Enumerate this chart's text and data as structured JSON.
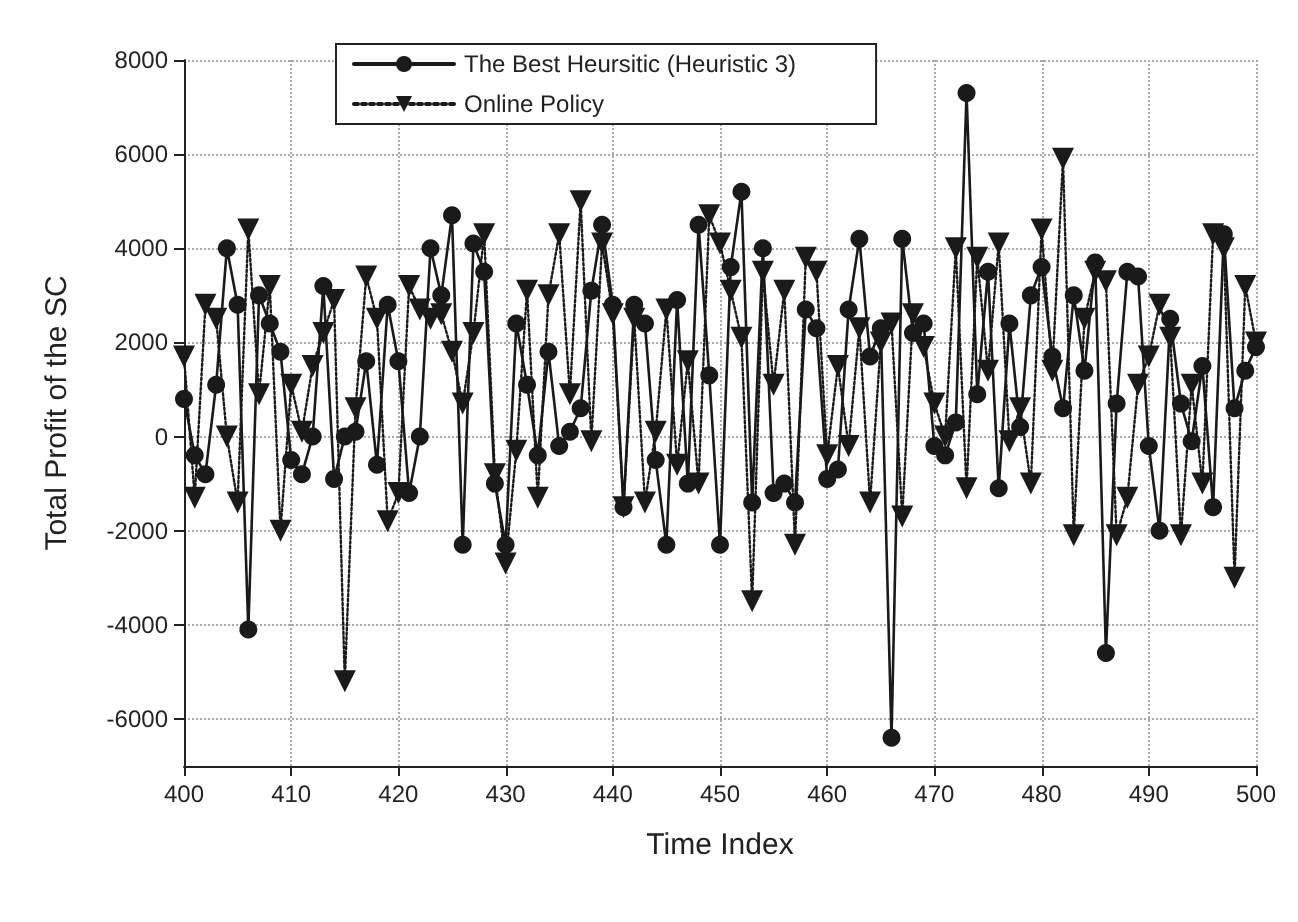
{
  "chart_data": {
    "type": "line",
    "xlabel": "Time Index",
    "ylabel": "Total Profit of the SC",
    "x": [
      400,
      401,
      402,
      403,
      404,
      405,
      406,
      407,
      408,
      409,
      410,
      411,
      412,
      413,
      414,
      415,
      416,
      417,
      418,
      419,
      420,
      421,
      422,
      423,
      424,
      425,
      426,
      427,
      428,
      429,
      430,
      431,
      432,
      433,
      434,
      435,
      436,
      437,
      438,
      439,
      440,
      441,
      442,
      443,
      444,
      445,
      446,
      447,
      448,
      449,
      450,
      451,
      452,
      453,
      454,
      455,
      456,
      457,
      458,
      459,
      460,
      461,
      462,
      463,
      464,
      465,
      466,
      467,
      468,
      469,
      470,
      471,
      472,
      473,
      474,
      475,
      476,
      477,
      478,
      479,
      480,
      481,
      482,
      483,
      484,
      485,
      486,
      487,
      488,
      489,
      490,
      491,
      492,
      493,
      494,
      495,
      496,
      497,
      498,
      499,
      500
    ],
    "series": [
      {
        "name": "The Best Heursitic (Heuristic 3)",
        "color": "#1a1a1a",
        "marker": "circle",
        "line_style": "solid",
        "values": [
          800,
          -400,
          -800,
          1100,
          4000,
          2800,
          -4100,
          3000,
          2400,
          1800,
          -500,
          -800,
          0,
          3200,
          -900,
          0,
          100,
          1600,
          -600,
          2800,
          1600,
          -1200,
          0,
          4000,
          3000,
          4700,
          -2300,
          4100,
          3500,
          -1000,
          -2300,
          2400,
          1100,
          -400,
          1800,
          -200,
          100,
          600,
          3100,
          4500,
          2800,
          -1500,
          2800,
          2400,
          -500,
          -2300,
          2900,
          -1000,
          4500,
          1300,
          -2300,
          3600,
          5200,
          -1400,
          4000,
          -1200,
          -1000,
          -1400,
          2700,
          2300,
          -900,
          -700,
          2700,
          4200,
          1700,
          2300,
          -6400,
          4200,
          2200,
          2400,
          -200,
          -400,
          300,
          7300,
          900,
          3500,
          -1100,
          2400,
          200,
          3000,
          3600,
          1700,
          600,
          3000,
          1400,
          3700,
          -4600,
          700,
          3500,
          3400,
          -200,
          -2000,
          2500,
          700,
          -100,
          1500,
          -1500,
          4300,
          600,
          1400,
          1900
        ]
      },
      {
        "name": "Online Policy",
        "color": "#1a1a1a",
        "marker": "triangle",
        "line_style": "dotted",
        "values": [
          1700,
          -1300,
          2800,
          2500,
          0,
          -1400,
          4400,
          900,
          3200,
          -2000,
          1100,
          100,
          1500,
          2200,
          2900,
          -5200,
          600,
          3400,
          2500,
          -1800,
          -1200,
          3200,
          2700,
          2500,
          2600,
          1800,
          700,
          2200,
          4300,
          -800,
          -2700,
          -300,
          3100,
          -1300,
          3000,
          4300,
          900,
          5000,
          -100,
          4100,
          2600,
          -1500,
          2500,
          -1400,
          100,
          2700,
          -600,
          1600,
          -1000,
          4700,
          4100,
          3100,
          2100,
          -3500,
          3500,
          1100,
          3100,
          -2300,
          3800,
          3500,
          -400,
          1500,
          -200,
          2300,
          -1400,
          2000,
          2400,
          -1700,
          2600,
          1900,
          700,
          0,
          4000,
          -1100,
          3800,
          1400,
          4100,
          -100,
          600,
          -1000,
          4400,
          1400,
          5900,
          -2100,
          2500,
          3500,
          3300,
          -2100,
          -1300,
          1100,
          1700,
          2800,
          2100,
          -2100,
          1100,
          -1000,
          4300,
          4000,
          -3000,
          3200,
          2000
        ]
      }
    ],
    "xlim": [
      400,
      500
    ],
    "xticks": [
      400,
      410,
      420,
      430,
      440,
      450,
      460,
      470,
      480,
      490,
      500
    ],
    "ylim": [
      -7000,
      8000
    ],
    "yticks": [
      -6000,
      -4000,
      -2000,
      0,
      2000,
      4000,
      6000,
      8000
    ],
    "grid": true,
    "legend": "top left"
  }
}
